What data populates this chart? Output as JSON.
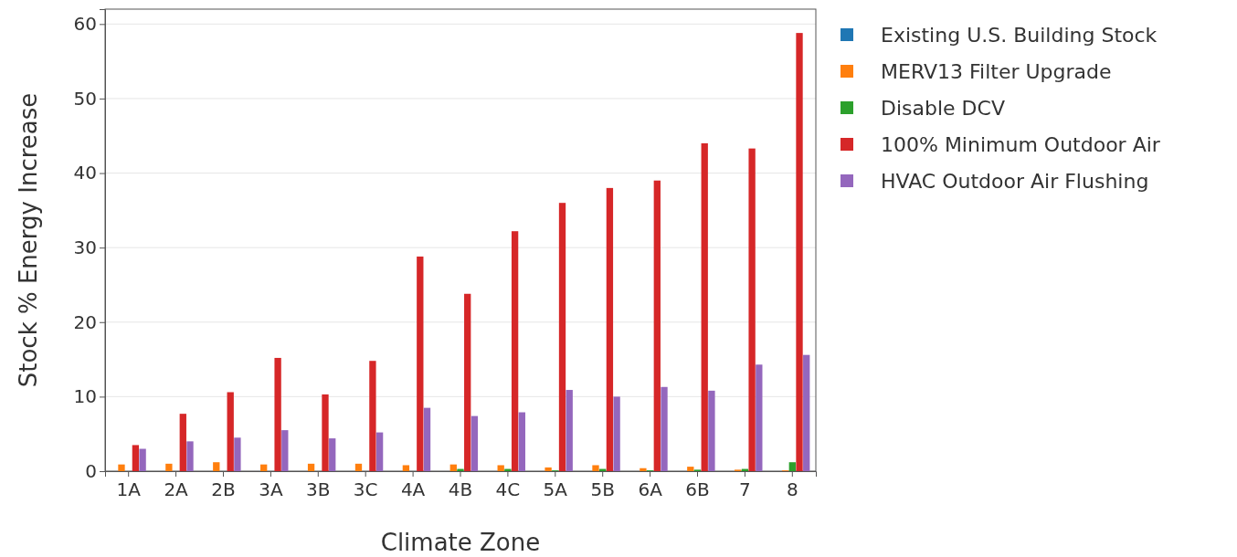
{
  "chart_data": {
    "type": "bar",
    "xlabel": "Climate Zone",
    "ylabel": "Stock % Energy Increase",
    "categories": [
      "1A",
      "2A",
      "2B",
      "3A",
      "3B",
      "3C",
      "4A",
      "4B",
      "4C",
      "5A",
      "5B",
      "6A",
      "6B",
      "7",
      "8"
    ],
    "series": [
      {
        "name": "Existing U.S. Building Stock",
        "color": "#1f77b4",
        "values": [
          0,
          0,
          0,
          0,
          0,
          0,
          0,
          0,
          0,
          0,
          0,
          0,
          0,
          0,
          0
        ]
      },
      {
        "name": "MERV13 Filter Upgrade",
        "color": "#ff7f0e",
        "values": [
          0.9,
          1.0,
          1.2,
          0.9,
          1.0,
          1.0,
          0.8,
          0.9,
          0.8,
          0.5,
          0.8,
          0.4,
          0.6,
          0.2,
          0.1
        ]
      },
      {
        "name": "Disable DCV",
        "color": "#2ca02c",
        "values": [
          0,
          0,
          0,
          0,
          0,
          0,
          0,
          0.3,
          0.3,
          0.1,
          0.3,
          0.1,
          0.2,
          0.3,
          1.2
        ]
      },
      {
        "name": "100% Minimum Outdoor Air",
        "color": "#d62728",
        "values": [
          3.5,
          7.7,
          10.6,
          15.2,
          10.3,
          14.8,
          28.8,
          23.8,
          32.2,
          36.0,
          38.0,
          39.0,
          44.0,
          43.3,
          58.8
        ]
      },
      {
        "name": "HVAC Outdoor Air Flushing",
        "color": "#9467bd",
        "values": [
          3.0,
          4.0,
          4.5,
          5.5,
          4.4,
          5.2,
          8.5,
          7.4,
          7.9,
          10.9,
          10.0,
          11.3,
          10.8,
          14.3,
          15.6
        ]
      }
    ],
    "ylim": [
      0,
      62
    ],
    "yticks": [
      0,
      10,
      20,
      30,
      40,
      50,
      60
    ],
    "grid": "y",
    "legend": "top right"
  }
}
